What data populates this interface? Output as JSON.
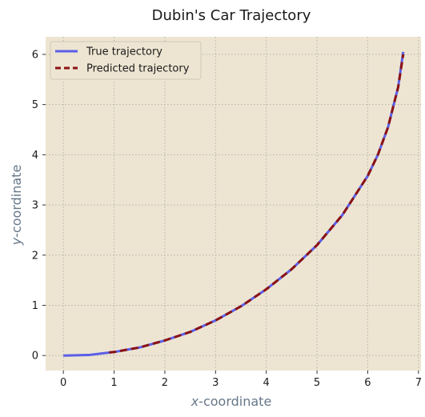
{
  "chart_data": {
    "type": "line",
    "title": "Dubin's Car Trajectory",
    "xlabel_var": "x",
    "xlabel_rest": "-coordinate",
    "ylabel_var": "y",
    "ylabel_rest": "-coordinate",
    "xlim": [
      -0.35,
      7.05
    ],
    "ylim": [
      -0.3,
      6.35
    ],
    "xticks": [
      0,
      1,
      2,
      3,
      4,
      5,
      6,
      7
    ],
    "yticks": [
      0,
      1,
      2,
      3,
      4,
      5,
      6
    ],
    "grid": true,
    "legend_position": "top-left",
    "colors": {
      "plot_bg": "#ede5d2",
      "grid": "#b8b3a6",
      "true_line": "#5b5ee8",
      "pred_line": "#8b1212"
    },
    "series": [
      {
        "name": "True trajectory",
        "style": "solid",
        "x": [
          0,
          0.5,
          1.0,
          1.5,
          2.0,
          2.5,
          3.0,
          3.5,
          4.0,
          4.5,
          5.0,
          5.5,
          6.0,
          6.2,
          6.4,
          6.6,
          6.7
        ],
        "y": [
          0,
          0.01,
          0.07,
          0.16,
          0.3,
          0.47,
          0.7,
          0.98,
          1.32,
          1.72,
          2.2,
          2.8,
          3.58,
          4.0,
          4.55,
          5.35,
          6.05
        ]
      },
      {
        "name": "Predicted trajectory",
        "style": "dashed",
        "x": [
          0.9,
          1.0,
          1.5,
          2.0,
          2.5,
          3.0,
          3.5,
          4.0,
          4.5,
          5.0,
          5.5,
          6.0,
          6.2,
          6.4,
          6.6,
          6.7
        ],
        "y": [
          0.06,
          0.07,
          0.16,
          0.3,
          0.47,
          0.7,
          0.98,
          1.32,
          1.72,
          2.2,
          2.8,
          3.58,
          4.0,
          4.55,
          5.35,
          6.0
        ]
      }
    ]
  }
}
